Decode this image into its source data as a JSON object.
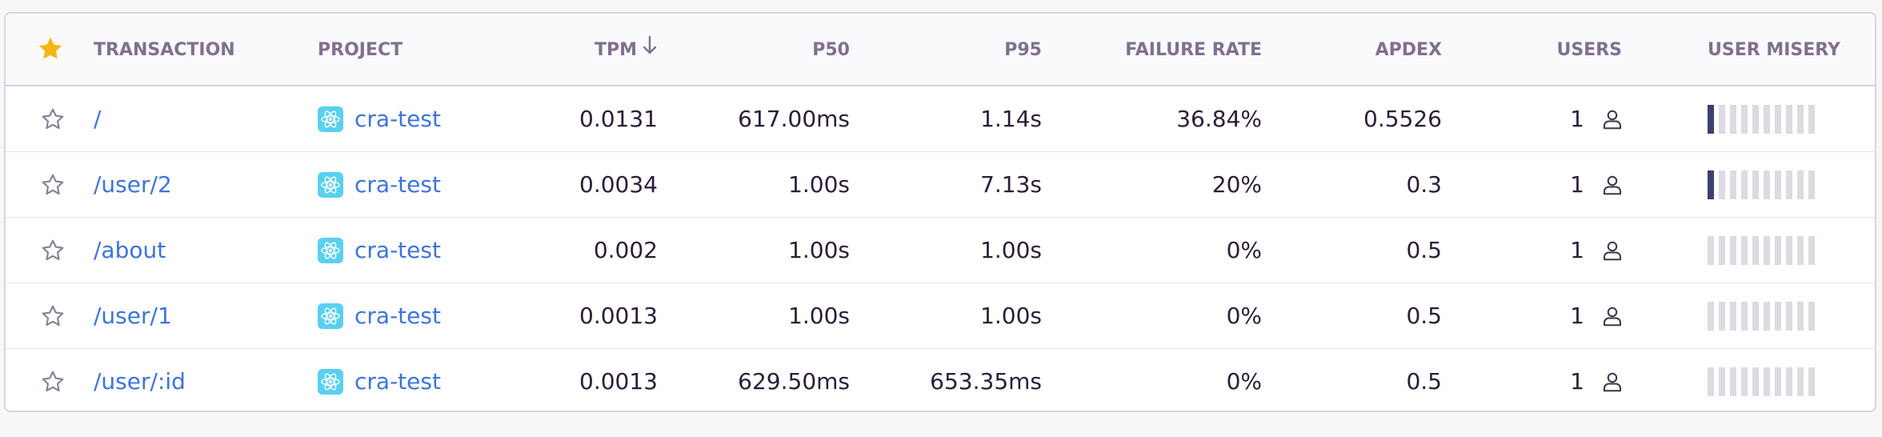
{
  "header": {
    "transaction": "TRANSACTION",
    "project": "PROJECT",
    "tpm": "TPM",
    "p50": "P50",
    "p95": "P95",
    "failure_rate": "FAILURE RATE",
    "apdex": "APDEX",
    "users": "USERS",
    "user_misery": "USER MISERY",
    "sort_icon": "arrow-down-icon",
    "star_icon": "star-filled-icon"
  },
  "colors": {
    "link": "#3d74db",
    "header_text": "#80708f",
    "star_active": "#f2b712",
    "misery_on": "#3d3f6e",
    "misery_off": "#dddae1",
    "project_icon": "#5ad0f0"
  },
  "rows": [
    {
      "transaction": "/",
      "project": "cra-test",
      "tpm": "0.0131",
      "p50": "617.00ms",
      "p95": "1.14s",
      "failure_rate": "36.84%",
      "apdex": "0.5526",
      "users": "1",
      "misery_level": 1
    },
    {
      "transaction": "/user/2",
      "project": "cra-test",
      "tpm": "0.0034",
      "p50": "1.00s",
      "p95": "7.13s",
      "failure_rate": "20%",
      "apdex": "0.3",
      "users": "1",
      "misery_level": 1
    },
    {
      "transaction": "/about",
      "project": "cra-test",
      "tpm": "0.002",
      "p50": "1.00s",
      "p95": "1.00s",
      "failure_rate": "0%",
      "apdex": "0.5",
      "users": "1",
      "misery_level": 0
    },
    {
      "transaction": "/user/1",
      "project": "cra-test",
      "tpm": "0.0013",
      "p50": "1.00s",
      "p95": "1.00s",
      "failure_rate": "0%",
      "apdex": "0.5",
      "users": "1",
      "misery_level": 0
    },
    {
      "transaction": "/user/:id",
      "project": "cra-test",
      "tpm": "0.0013",
      "p50": "629.50ms",
      "p95": "653.35ms",
      "failure_rate": "0%",
      "apdex": "0.5",
      "users": "1",
      "misery_level": 0
    }
  ]
}
